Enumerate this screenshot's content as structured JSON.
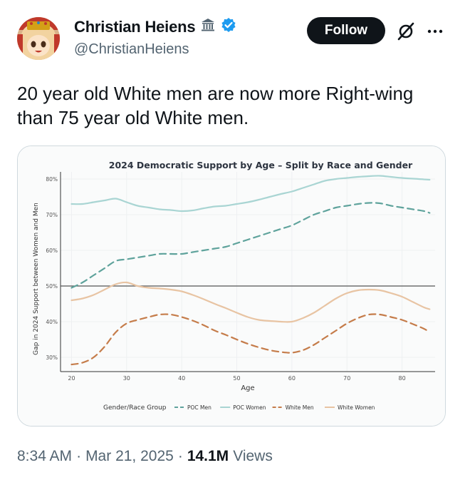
{
  "author": {
    "display_name": "Christian Heiens",
    "handle": "@ChristianHeiens",
    "badge_icon": "classical-building-icon",
    "verified_icon": "verified-badge-icon",
    "verified_color": "#1d9bf0"
  },
  "actions": {
    "follow_label": "Follow",
    "grok_icon": "grok-icon",
    "more_icon": "more-icon"
  },
  "tweet": {
    "text_line1": "20 year old White men are now more Right-wing",
    "text_line2": "than 75 year old White men."
  },
  "meta": {
    "time": "8:34 AM",
    "sep1": "·",
    "date": "Mar 21, 2025",
    "sep2": "·",
    "views_count": "14.1M",
    "views_label": "Views"
  },
  "chart_data": {
    "type": "line",
    "title": "2024 Democratic Support by Age – Split by Race and Gender",
    "xlabel": "Age",
    "ylabel": "Gap in 2024 Support between Women and Men",
    "xlim": [
      18,
      86
    ],
    "ylim": [
      26,
      82
    ],
    "xticks": [
      20,
      30,
      40,
      50,
      60,
      70,
      80
    ],
    "yticks": [
      30,
      40,
      50,
      60,
      70,
      80
    ],
    "ytick_labels": [
      "30%",
      "40%",
      "50%",
      "60%",
      "70%",
      "80%"
    ],
    "reference_line": 50,
    "grid": true,
    "legend_title": "Gender/Race Group",
    "legend_position": "bottom",
    "x": [
      20,
      22,
      24,
      26,
      28,
      30,
      32,
      34,
      36,
      38,
      40,
      42,
      44,
      46,
      48,
      50,
      52,
      54,
      56,
      58,
      60,
      62,
      64,
      66,
      68,
      70,
      72,
      74,
      76,
      78,
      80,
      82,
      84,
      85
    ],
    "series": [
      {
        "name": "POC Men",
        "color": "#5fa39c",
        "dash": true,
        "values": [
          49.5,
          51,
          53,
          55,
          57,
          57.5,
          58,
          58.5,
          59,
          59,
          59,
          59.5,
          60,
          60.5,
          61,
          62,
          63,
          64,
          65,
          66,
          67,
          68.5,
          70,
          71,
          72,
          72.5,
          73,
          73.3,
          73.2,
          72.5,
          72,
          71.5,
          71,
          70.5
        ]
      },
      {
        "name": "POC Women",
        "color": "#a9d5d3",
        "dash": false,
        "values": [
          73,
          73,
          73.5,
          74,
          74.5,
          73.5,
          72.5,
          72,
          71.5,
          71.3,
          71,
          71.2,
          71.8,
          72.3,
          72.5,
          73,
          73.5,
          74.2,
          75,
          75.8,
          76.5,
          77.5,
          78.5,
          79.5,
          80,
          80.3,
          80.6,
          80.8,
          80.9,
          80.6,
          80.3,
          80.1,
          79.9,
          79.8
        ]
      },
      {
        "name": "White Men",
        "color": "#c57c4a",
        "dash": true,
        "values": [
          28,
          28.5,
          30,
          33,
          37,
          39.5,
          40.5,
          41.3,
          42,
          42,
          41.3,
          40.3,
          39,
          37.5,
          36.3,
          35,
          33.8,
          32.8,
          32,
          31.5,
          31.3,
          32,
          33.5,
          35.5,
          37.5,
          39.5,
          41,
          42,
          42,
          41.3,
          40.5,
          39.3,
          38,
          37
        ]
      },
      {
        "name": "White Women",
        "color": "#e8c4a3",
        "dash": false,
        "values": [
          46,
          46.5,
          47.5,
          49,
          50.5,
          51,
          50,
          49.5,
          49.3,
          49,
          48.5,
          47.5,
          46.3,
          45,
          43.8,
          42.5,
          41.3,
          40.5,
          40.2,
          40,
          40,
          41,
          42.5,
          44.5,
          46.5,
          48,
          48.8,
          49,
          48.8,
          48,
          47,
          45.5,
          44,
          43.5
        ]
      }
    ]
  }
}
